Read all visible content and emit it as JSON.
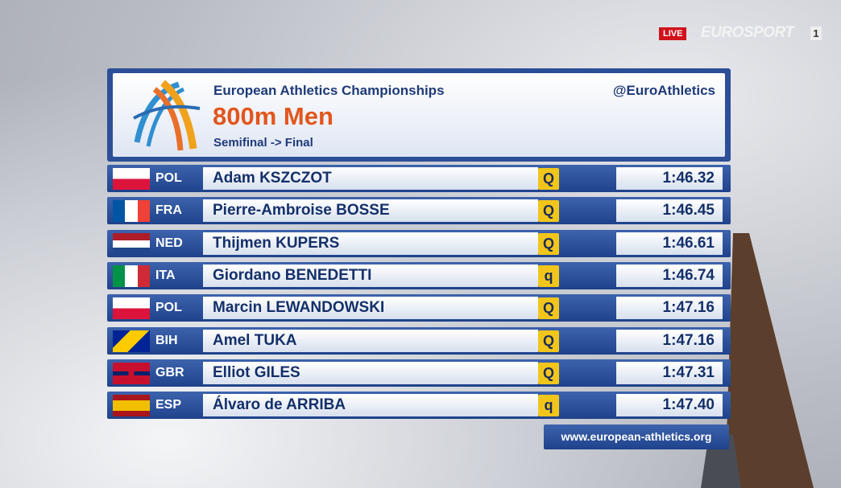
{
  "broadcast": {
    "live": "LIVE",
    "channel": "EUROSPORT",
    "channel_number": "1"
  },
  "header": {
    "event": "European Athletics Championships",
    "title": "800m Men",
    "round": "Semifinal -> Final",
    "handle": "@EuroAthletics"
  },
  "rows": [
    {
      "country": "POL",
      "name": "Adam KSZCZOT",
      "qualifier": "Q",
      "time": "1:46.32"
    },
    {
      "country": "FRA",
      "name": "Pierre-Ambroise BOSSE",
      "qualifier": "Q",
      "time": "1:46.45"
    },
    {
      "country": "NED",
      "name": "Thijmen KUPERS",
      "qualifier": "Q",
      "time": "1:46.61"
    },
    {
      "country": "ITA",
      "name": "Giordano BENEDETTI",
      "qualifier": "q",
      "time": "1:46.74"
    },
    {
      "country": "POL",
      "name": "Marcin LEWANDOWSKI",
      "qualifier": "Q",
      "time": "1:47.16"
    },
    {
      "country": "BIH",
      "name": "Amel TUKA",
      "qualifier": "Q",
      "time": "1:47.16"
    },
    {
      "country": "GBR",
      "name": "Elliot GILES",
      "qualifier": "Q",
      "time": "1:47.31"
    },
    {
      "country": "ESP",
      "name": "Álvaro de ARRIBA",
      "qualifier": "q",
      "time": "1:47.40"
    }
  ],
  "footer": {
    "url": "www.european-athletics.org"
  }
}
